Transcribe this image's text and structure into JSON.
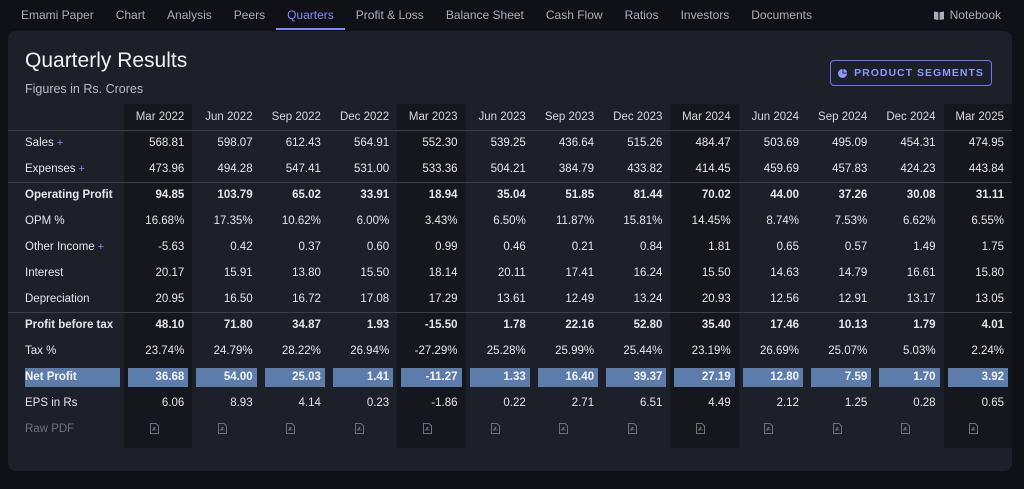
{
  "nav": {
    "items": [
      "Emami Paper",
      "Chart",
      "Analysis",
      "Peers",
      "Quarters",
      "Profit & Loss",
      "Balance Sheet",
      "Cash Flow",
      "Ratios",
      "Investors",
      "Documents"
    ],
    "active": "Quarters",
    "notebook": "Notebook"
  },
  "header": {
    "title": "Quarterly Results",
    "subtitle": "Figures in Rs. Crores",
    "segments_button": "PRODUCT SEGMENTS"
  },
  "table": {
    "columns": [
      "Mar 2022",
      "Jun 2022",
      "Sep 2022",
      "Dec 2022",
      "Mar 2023",
      "Jun 2023",
      "Sep 2023",
      "Dec 2023",
      "Mar 2024",
      "Jun 2024",
      "Sep 2024",
      "Dec 2024",
      "Mar 2025"
    ],
    "rows": [
      {
        "label": "Sales",
        "expand": "+",
        "values": [
          "568.81",
          "598.07",
          "612.43",
          "564.91",
          "552.30",
          "539.25",
          "436.64",
          "515.26",
          "484.47",
          "503.69",
          "495.09",
          "454.31",
          "474.95"
        ]
      },
      {
        "label": "Expenses",
        "expand": "+",
        "values": [
          "473.96",
          "494.28",
          "547.41",
          "531.00",
          "533.36",
          "504.21",
          "384.79",
          "433.82",
          "414.45",
          "459.69",
          "457.83",
          "424.23",
          "443.84"
        ]
      },
      {
        "label": "Operating Profit",
        "values": [
          "94.85",
          "103.79",
          "65.02",
          "33.91",
          "18.94",
          "35.04",
          "51.85",
          "81.44",
          "70.02",
          "44.00",
          "37.26",
          "30.08",
          "31.11"
        ]
      },
      {
        "label": "OPM %",
        "values": [
          "16.68%",
          "17.35%",
          "10.62%",
          "6.00%",
          "3.43%",
          "6.50%",
          "11.87%",
          "15.81%",
          "14.45%",
          "8.74%",
          "7.53%",
          "6.62%",
          "6.55%"
        ]
      },
      {
        "label": "Other Income",
        "expand": "+",
        "values": [
          "-5.63",
          "0.42",
          "0.37",
          "0.60",
          "0.99",
          "0.46",
          "0.21",
          "0.84",
          "1.81",
          "0.65",
          "0.57",
          "1.49",
          "1.75"
        ]
      },
      {
        "label": "Interest",
        "values": [
          "20.17",
          "15.91",
          "13.80",
          "15.50",
          "18.14",
          "20.11",
          "17.41",
          "16.24",
          "15.50",
          "14.63",
          "14.79",
          "16.61",
          "15.80"
        ]
      },
      {
        "label": "Depreciation",
        "values": [
          "20.95",
          "16.50",
          "16.72",
          "17.08",
          "17.29",
          "13.61",
          "12.49",
          "13.24",
          "20.93",
          "12.56",
          "12.91",
          "13.17",
          "13.05"
        ]
      },
      {
        "label": "Profit before tax",
        "values": [
          "48.10",
          "71.80",
          "34.87",
          "1.93",
          "-15.50",
          "1.78",
          "22.16",
          "52.80",
          "35.40",
          "17.46",
          "10.13",
          "1.79",
          "4.01"
        ]
      },
      {
        "label": "Tax %",
        "values": [
          "23.74%",
          "24.79%",
          "28.22%",
          "26.94%",
          "-27.29%",
          "25.28%",
          "25.99%",
          "25.44%",
          "23.19%",
          "26.69%",
          "25.07%",
          "5.03%",
          "2.24%"
        ]
      },
      {
        "label": "Net Profit",
        "values": [
          "36.68",
          "54.00",
          "25.03",
          "1.41",
          "-11.27",
          "1.33",
          "16.40",
          "39.37",
          "27.19",
          "12.80",
          "7.59",
          "1.70",
          "3.92"
        ]
      },
      {
        "label": "EPS in Rs",
        "values": [
          "6.06",
          "8.93",
          "4.14",
          "0.23",
          "-1.86",
          "0.22",
          "2.71",
          "6.51",
          "4.49",
          "2.12",
          "1.25",
          "0.28",
          "0.65"
        ]
      }
    ],
    "raw_pdf_label": "Raw PDF",
    "bold_rows": [
      "Operating Profit",
      "Profit before tax"
    ],
    "separator_before": [
      "Operating Profit",
      "Profit before tax"
    ],
    "highlight_row": "Net Profit",
    "highlight_color": "#5c7cab"
  },
  "colors": {
    "accent": "#7f8cff",
    "panel": "#1d2029",
    "background": "#0f1117",
    "band": "#15171d"
  }
}
